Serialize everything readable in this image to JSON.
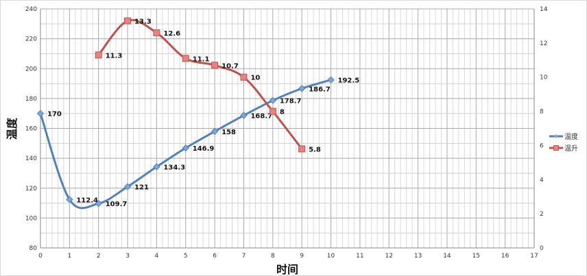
{
  "chart_data": {
    "type": "line",
    "xlabel": "时间",
    "ylabel": "温度",
    "xlim": [
      0,
      17
    ],
    "ylim": [
      80,
      240
    ],
    "y2lim": [
      0,
      14
    ],
    "x_ticks": [
      0,
      1,
      2,
      3,
      4,
      5,
      6,
      7,
      8,
      9,
      10,
      11,
      12,
      13,
      14,
      15,
      16,
      17
    ],
    "y_ticks": [
      80,
      100,
      120,
      140,
      160,
      180,
      200,
      220,
      240
    ],
    "y2_ticks": [
      0,
      2,
      4,
      6,
      8,
      10,
      12,
      14
    ],
    "grid": true,
    "legend_position": "right",
    "series": [
      {
        "name": "温度",
        "axis": "left",
        "color": "#4f81bd",
        "marker": "diamond",
        "x": [
          0,
          1,
          2,
          3,
          4,
          5,
          6,
          7,
          8,
          9,
          10
        ],
        "values": [
          170,
          112.4,
          109.7,
          121,
          134.3,
          146.9,
          158,
          168.7,
          178.7,
          186.7,
          192.5
        ]
      },
      {
        "name": "温升",
        "axis": "right",
        "color": "#c0504d",
        "marker": "square",
        "x": [
          2,
          3,
          4,
          5,
          6,
          7,
          8,
          9
        ],
        "values": [
          11.3,
          13.3,
          12.6,
          11.1,
          10.7,
          10,
          8,
          5.8
        ]
      }
    ]
  }
}
